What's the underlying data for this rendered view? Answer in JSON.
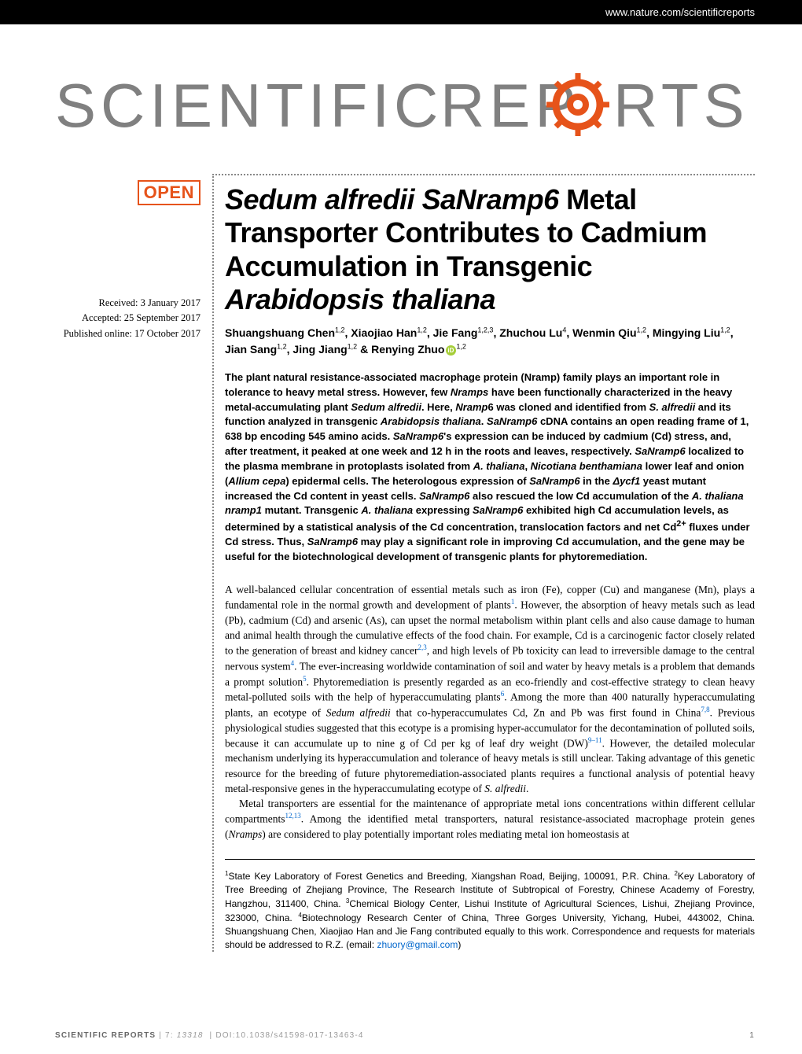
{
  "header": {
    "url": "www.nature.com/scientificreports"
  },
  "logo": {
    "text": "SCIENTIFIC REPORTS",
    "color": "#808080"
  },
  "badge": {
    "label": "OPEN",
    "color": "#e6531a"
  },
  "dates": {
    "received": "Received: 3 January 2017",
    "accepted": "Accepted: 25 September 2017",
    "published": "Published online: 17 October 2017"
  },
  "article": {
    "title_html": "<span class='italic'>Sedum alfredii SaNramp6</span> Metal Transporter Contributes to Cadmium Accumulation in Transgenic <span class='italic'>Arabidopsis thaliana</span>",
    "authors_html": "Shuangshuang Chen<sup>1,2</sup>, Xiaojiao Han<sup>1,2</sup>, Jie Fang<sup>1,2,3</sup>, Zhuchou Lu<sup>4</sup>, Wenmin Qiu<sup>1,2</sup>, Mingying Liu<sup>1,2</sup>, Jian Sang<sup>1,2</sup>, Jing Jiang<sup>1,2</sup> &amp; Renying Zhuo<span class='orcid-icon' data-name='orcid-icon' data-interactable='false'></span><sup>1,2</sup>",
    "abstract_html": "The plant natural resistance-associated macrophage protein (Nramp) family plays an important role in tolerance to heavy metal stress. However, few <span class='italic'>Nramps</span> have been functionally characterized in the heavy metal-accumulating plant <span class='italic'>Sedum alfredii</span>. Here, <span class='italic'>Nramp</span>6 was cloned and identified from <span class='italic'>S. alfredii</span> and its function analyzed in transgenic <span class='italic'>Arabidopsis thaliana</span>. <span class='italic'>SaNramp6</span> cDNA contains an open reading frame of 1, 638 bp encoding 545 amino acids. <span class='italic'>SaNramp6</span>'s expression can be induced by cadmium (Cd) stress, and, after treatment, it peaked at one week and 12 h in the roots and leaves, respectively. <span class='italic'>SaNramp6</span> localized to the plasma membrane in protoplasts isolated from <span class='italic'>A. thaliana</span>, <span class='italic'>Nicotiana benthamiana</span> lower leaf and onion (<span class='italic'>Allium cepa</span>) epidermal cells. The heterologous expression of <span class='italic'>SaNramp6</span> in the <span class='italic'>&Delta;ycf1</span> yeast mutant increased the Cd content in yeast cells. <span class='italic'>SaNramp6</span> also rescued the low Cd accumulation of the <span class='italic'>A. thaliana nramp1</span> mutant. Transgenic <span class='italic'>A. thaliana</span> expressing <span class='italic'>SaNramp6</span> exhibited high Cd accumulation levels, as determined by a statistical analysis of the Cd concentration, translocation factors and net Cd<sup>2+</sup> fluxes under Cd stress. Thus, <span class='italic'>SaNramp6</span> may play a significant role in improving Cd accumulation, and the gene may be useful for the biotechnological development of transgenic plants for phytoremediation.",
    "body_p1_html": "A well-balanced cellular concentration of essential metals such as iron (Fe), copper (Cu) and manganese (Mn), plays a fundamental role in the normal growth and development of plants<sup class='ref-link'>1</sup>. However, the absorption of heavy metals such as lead (Pb), cadmium (Cd) and arsenic (As), can upset the normal metabolism within plant cells and also cause damage to human and animal health through the cumulative effects of the food chain. For example, Cd is a carcinogenic factor closely related to the generation of breast and kidney cancer<sup class='ref-link'>2,3</sup>, and high levels of Pb toxicity can lead to irreversible damage to the central nervous system<sup class='ref-link'>4</sup>. The ever-increasing worldwide contamination of soil and water by heavy metals is a problem that demands a prompt solution<sup class='ref-link'>5</sup>. Phytoremediation is presently regarded as an eco-friendly and cost-effective strategy to clean heavy metal-polluted soils with the help of hyperaccumulating plants<sup class='ref-link'>6</sup>. Among the more than 400 naturally hyperaccumulating plants, an ecotype of <span class='italic'>Sedum alfredii</span> that co-hyperaccumulates Cd, Zn and Pb was first found in China<sup class='ref-link'>7,8</sup>. Previous physiological studies suggested that this ecotype is a promising hyper-accumulator for the decontamination of polluted soils, because it can accumulate up to nine g of Cd per kg of leaf dry weight (DW)<sup class='ref-link'>9&ndash;11</sup>. However, the detailed molecular mechanism underlying its hyperaccumulation and tolerance of heavy metals is still unclear. Taking advantage of this genetic resource for the breeding of future phytoremediation-associated plants requires a functional analysis of potential heavy metal-responsive genes in the hyperaccumulating ecotype of <span class='italic'>S. alfredii</span>.",
    "body_p2_html": "Metal transporters are essential for the maintenance of appropriate metal ions concentrations within different cellular compartments<sup class='ref-link'>12,13</sup>. Among the identified metal transporters, natural resistance-associated macrophage protein genes (<span class='italic'>Nramps</span>) are considered to play potentially important roles mediating metal ion homeostasis at",
    "affiliations_html": "<sup>1</sup>State Key Laboratory of Forest Genetics and Breeding, Xiangshan Road, Beijing, 100091, P.R. China. <sup>2</sup>Key Laboratory of Tree Breeding of Zhejiang Province, The Research Institute of Subtropical of Forestry, Chinese Academy of Forestry, Hangzhou, 311400, China. <sup>3</sup>Chemical Biology Center, Lishui Institute of Agricultural Sciences, Lishui, Zhejiang Province, 323000, China. <sup>4</sup>Biotechnology Research Center of China, Three Gorges University, Yichang, Hubei, 443002, China. Shuangshuang Chen, Xiaojiao Han and Jie Fang contributed equally to this work. Correspondence and requests for materials should be addressed to R.Z. (email: <span class='email-link'>zhuory@gmail.com</span>)"
  },
  "footer": {
    "journal": "SCIENTIFIC REPORTS",
    "volume": "7",
    "article_num": "13318",
    "doi": "DOI:10.1038/s41598-017-13463-4",
    "page": "1"
  },
  "colors": {
    "accent": "#e6531a",
    "link": "#0066cc",
    "logo": "#808080",
    "orcid": "#a6ce39",
    "footer_text": "#999"
  }
}
